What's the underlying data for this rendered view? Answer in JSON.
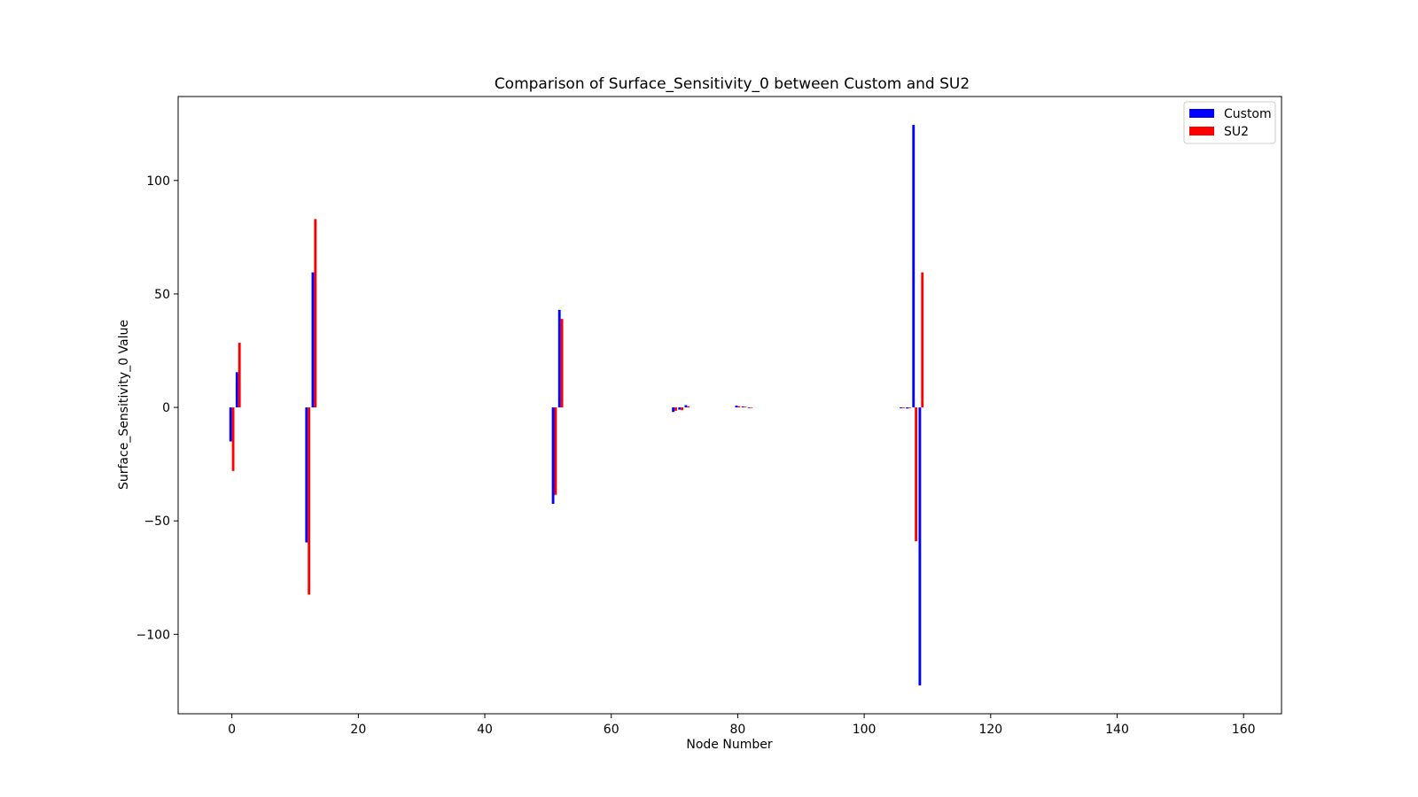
{
  "chart_data": {
    "type": "bar",
    "title": "Comparison of Surface_Sensitivity_0 between Custom and SU2",
    "xlabel": "Node Number",
    "ylabel": "Surface_Sensitivity_0 Value",
    "xlim": [
      -8.5,
      166
    ],
    "ylim": [
      -135,
      137
    ],
    "xticks": [
      0,
      20,
      40,
      60,
      80,
      100,
      120,
      140,
      160
    ],
    "yticks": [
      -100,
      -50,
      0,
      50,
      100
    ],
    "grid": false,
    "legend_position": "top-right",
    "bar_width": 0.4,
    "series": [
      {
        "name": "Custom",
        "color": "#0000ff",
        "offset": -0.2,
        "points": [
          {
            "x": 0,
            "y": -15
          },
          {
            "x": 1,
            "y": 15.5
          },
          {
            "x": 12,
            "y": -59.5
          },
          {
            "x": 13,
            "y": 59.5
          },
          {
            "x": 51,
            "y": -42.5
          },
          {
            "x": 52,
            "y": 43
          },
          {
            "x": 70,
            "y": -2
          },
          {
            "x": 71,
            "y": -1
          },
          {
            "x": 72,
            "y": 1
          },
          {
            "x": 80,
            "y": 0.8
          },
          {
            "x": 81,
            "y": 0.4
          },
          {
            "x": 82,
            "y": -0.3
          },
          {
            "x": 106,
            "y": -0.4
          },
          {
            "x": 107,
            "y": -0.5
          },
          {
            "x": 108,
            "y": 124.5
          },
          {
            "x": 109,
            "y": -122.5
          }
        ]
      },
      {
        "name": "SU2",
        "color": "#ff0000",
        "offset": 0.2,
        "points": [
          {
            "x": 0,
            "y": -28
          },
          {
            "x": 1,
            "y": 28.5
          },
          {
            "x": 12,
            "y": -82.5
          },
          {
            "x": 13,
            "y": 83
          },
          {
            "x": 51,
            "y": -38.5
          },
          {
            "x": 52,
            "y": 39
          },
          {
            "x": 70,
            "y": -1.5
          },
          {
            "x": 71,
            "y": -1.2
          },
          {
            "x": 72,
            "y": 0.5
          },
          {
            "x": 80,
            "y": 0.5
          },
          {
            "x": 81,
            "y": 0.3
          },
          {
            "x": 82,
            "y": -0.2
          },
          {
            "x": 106,
            "y": -0.3
          },
          {
            "x": 107,
            "y": -0.3
          },
          {
            "x": 108,
            "y": -59
          },
          {
            "x": 109,
            "y": 59.5
          }
        ]
      }
    ]
  }
}
